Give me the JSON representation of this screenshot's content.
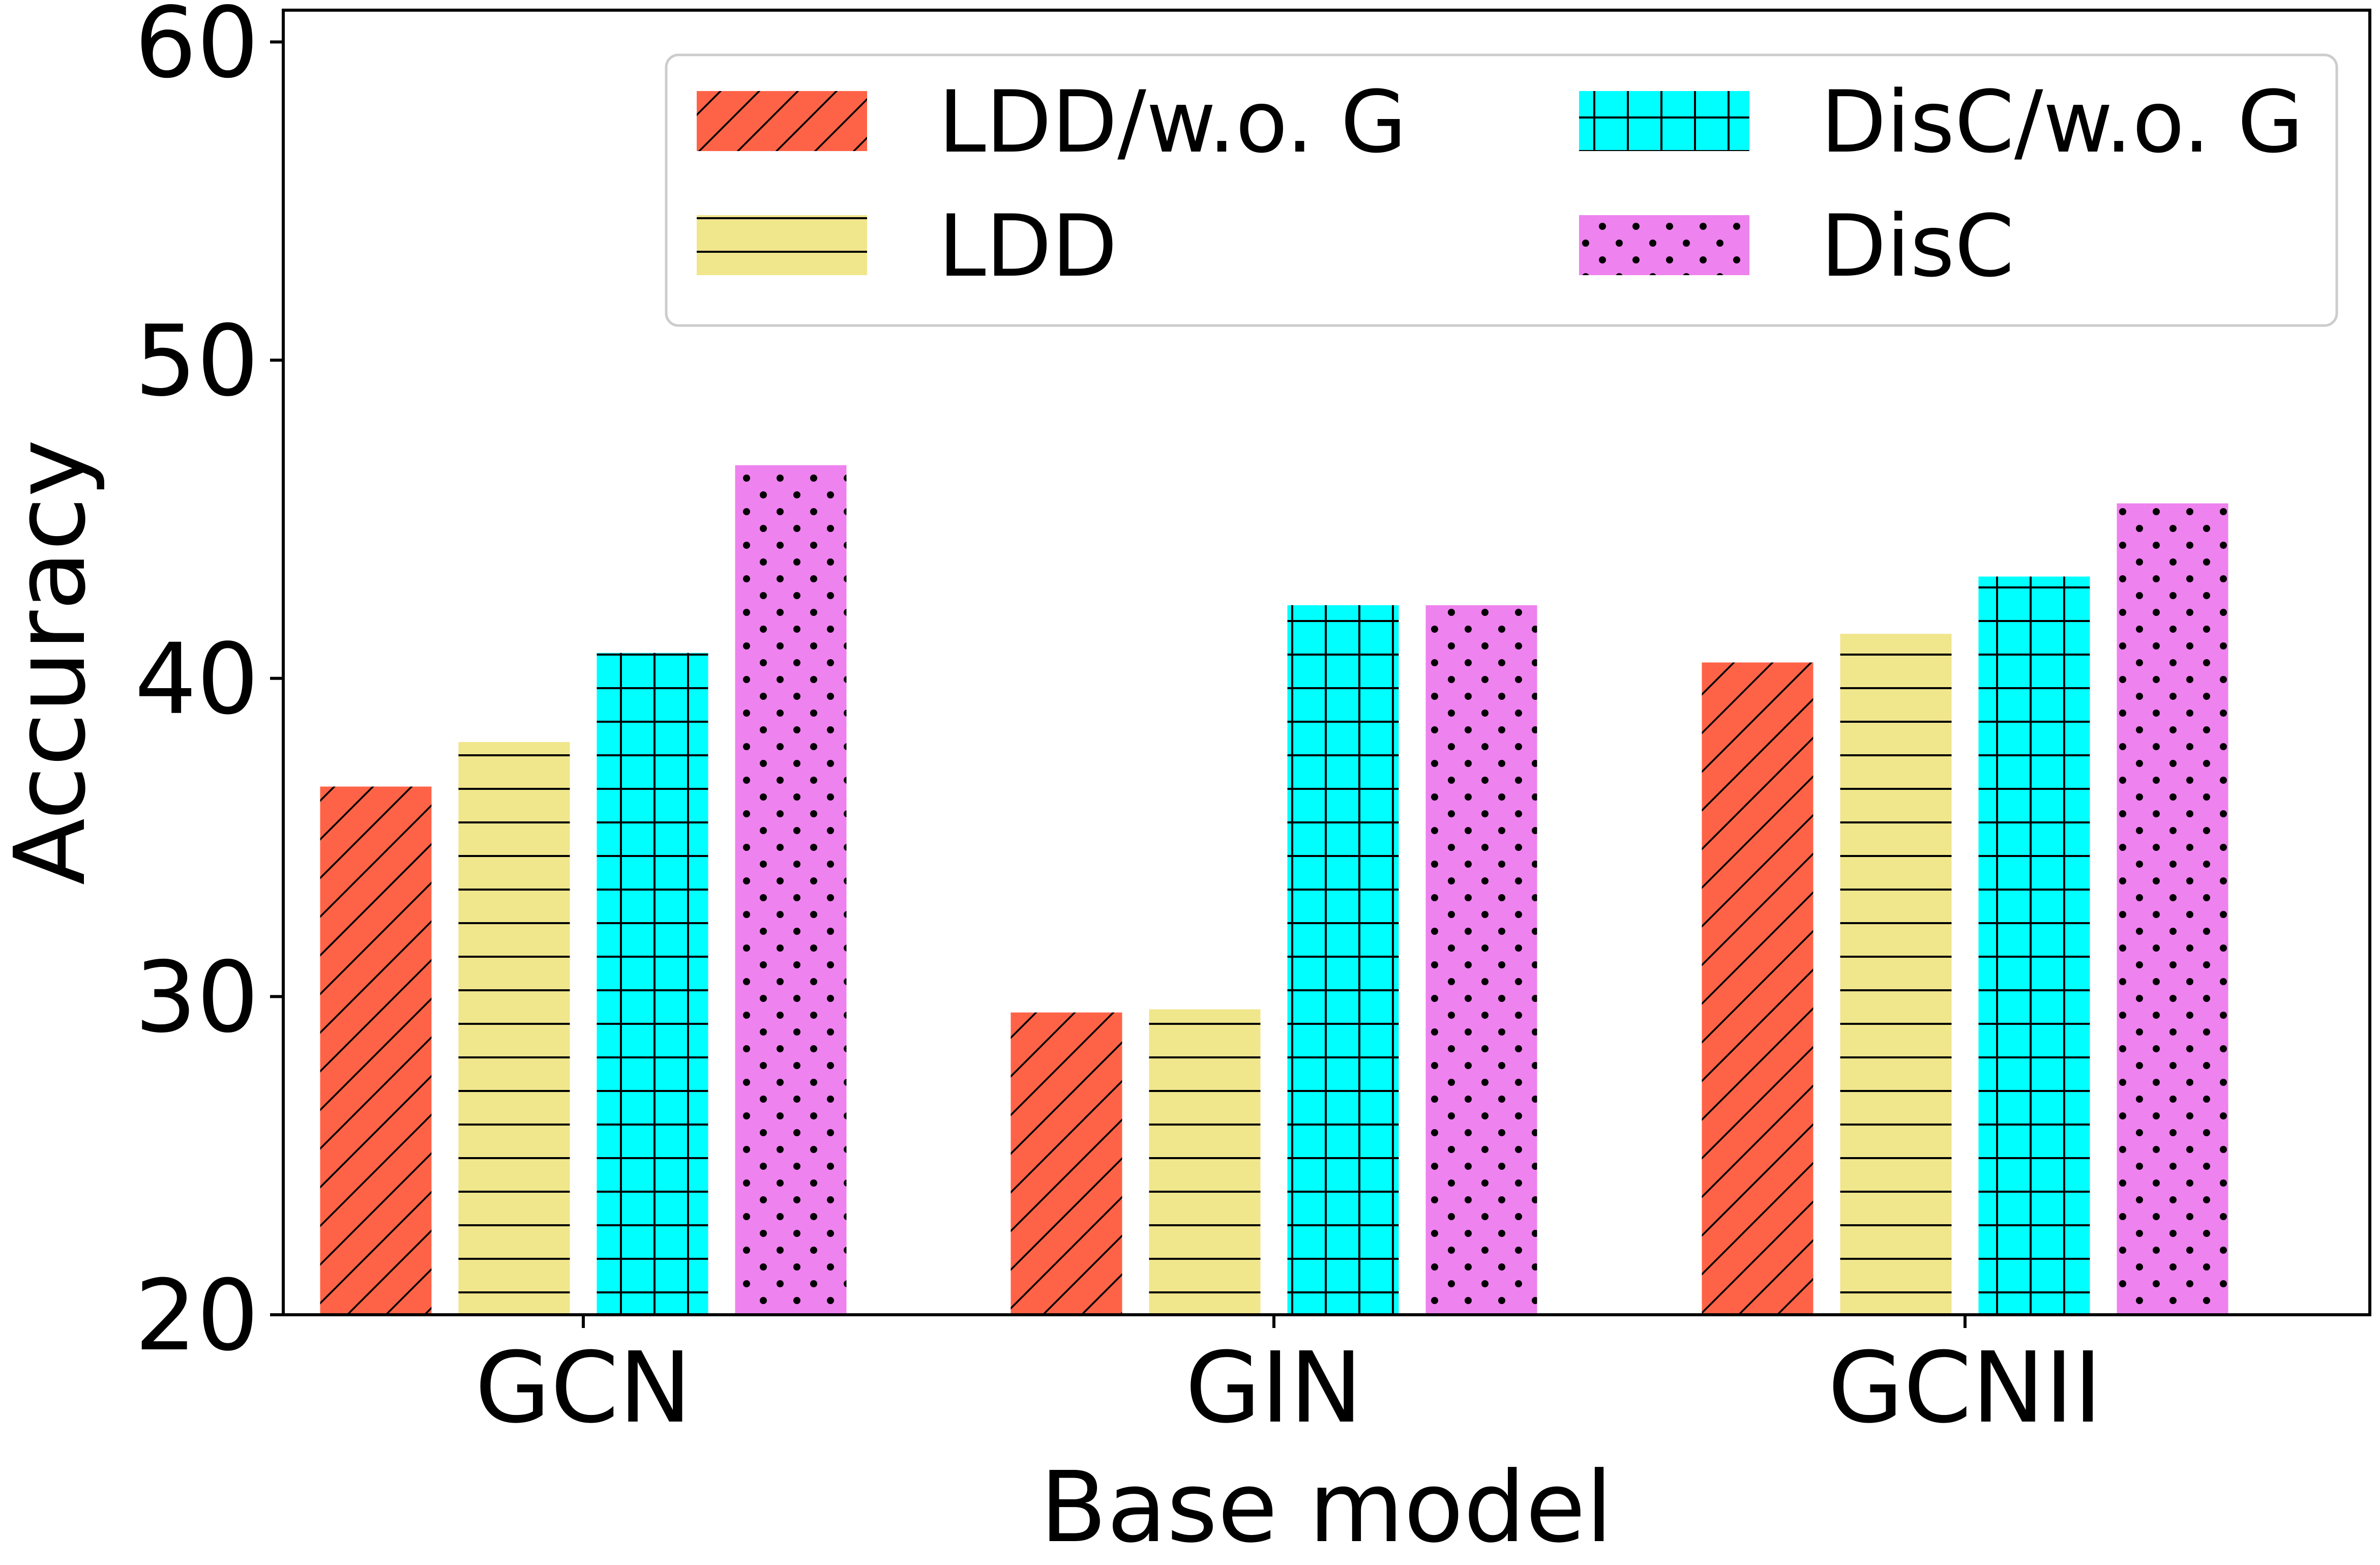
{
  "chart_data": {
    "type": "bar",
    "title": "",
    "xlabel": "Base model",
    "ylabel": "Accuracy",
    "ylim": [
      20,
      61
    ],
    "yticks": [
      20,
      30,
      40,
      50,
      60
    ],
    "grid": false,
    "legend_position": "top-right",
    "legend_columns": 2,
    "categories": [
      "GCN",
      "GIN",
      "GCNII"
    ],
    "series": [
      {
        "name": "LDD/w.o. G",
        "values": [
          36.6,
          29.5,
          40.5
        ],
        "color": "#ff6347",
        "hatch": "diagonal"
      },
      {
        "name": "LDD",
        "values": [
          38.0,
          29.6,
          41.4
        ],
        "color": "#f0e68c",
        "hatch": "horizontal"
      },
      {
        "name": "DisC/w.o. G",
        "values": [
          40.8,
          42.3,
          43.2
        ],
        "color": "#00ffff",
        "hatch": "grid"
      },
      {
        "name": "DisC",
        "values": [
          46.7,
          42.3,
          45.5
        ],
        "color": "#ee82ee",
        "hatch": "dots"
      }
    ]
  }
}
